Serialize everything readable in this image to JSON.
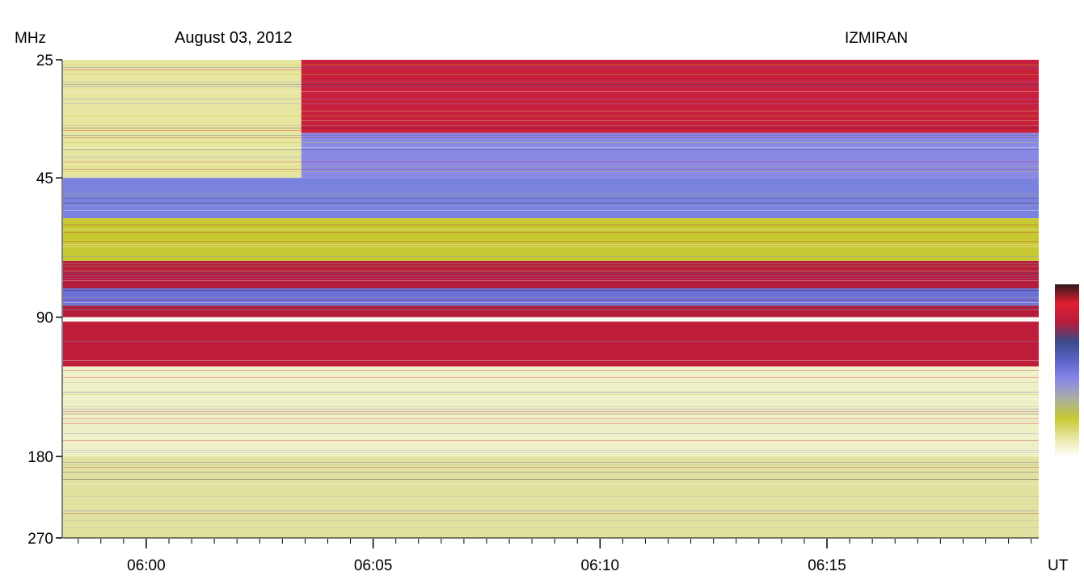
{
  "chart_data": {
    "type": "heatmap",
    "title": "August 03, 2012",
    "observatory": "IZMIRAN",
    "ylabel": "MHz",
    "xlabel": "UT",
    "y_scale": "log",
    "ylim": [
      25,
      270
    ],
    "yticks": [
      {
        "value": 25,
        "label": "25"
      },
      {
        "value": 45,
        "label": "45"
      },
      {
        "value": 90,
        "label": "90"
      },
      {
        "value": 180,
        "label": "180"
      },
      {
        "value": 270,
        "label": "270"
      }
    ],
    "xlim": [
      "05:58:10",
      "06:19:40"
    ],
    "xticks": [
      {
        "value": "06:00",
        "label": "06:00"
      },
      {
        "value": "06:05",
        "label": "06:05"
      },
      {
        "value": "06:10",
        "label": "06:10"
      },
      {
        "value": "06:15",
        "label": "06:15"
      }
    ],
    "minor_tick_minutes": 0.5,
    "colormap": [
      "#ffffff",
      "#e6e6a0",
      "#c8c832",
      "#aab0a0",
      "#8a8ae6",
      "#5a64c8",
      "#3a4a8a",
      "#b41e3c",
      "#e01e32",
      "#301818"
    ],
    "bands": [
      {
        "f_start": 25,
        "f_end": 45,
        "t_start": "05:58:10",
        "t_end": "06:03:25",
        "color": "#e6e6a0"
      },
      {
        "f_start": 25,
        "f_end": 36,
        "t_start": "06:03:25",
        "t_end": "06:19:40",
        "color": "#c8203c"
      },
      {
        "f_start": 36,
        "f_end": 45,
        "t_start": "06:03:25",
        "t_end": "06:19:40",
        "color": "#8a8ae6"
      },
      {
        "f_start": 45,
        "f_end": 55,
        "t_start": "05:58:10",
        "t_end": "06:19:40",
        "color": "#7a82e0"
      },
      {
        "f_start": 55,
        "f_end": 68,
        "t_start": "05:58:10",
        "t_end": "06:19:40",
        "color": "#c8c832"
      },
      {
        "f_start": 68,
        "f_end": 78,
        "t_start": "05:58:10",
        "t_end": "06:19:40",
        "color": "#b41e3c"
      },
      {
        "f_start": 78,
        "f_end": 85,
        "t_start": "05:58:10",
        "t_end": "06:19:40",
        "color": "#6a72d6"
      },
      {
        "f_start": 85,
        "f_end": 90,
        "t_start": "05:58:10",
        "t_end": "06:19:40",
        "color": "#b41e3c"
      },
      {
        "f_start": 92,
        "f_end": 115,
        "t_start": "05:58:10",
        "t_end": "06:19:40",
        "color": "#be1e3a"
      },
      {
        "f_start": 115,
        "f_end": 180,
        "t_start": "05:58:10",
        "t_end": "06:19:40",
        "color": "#f0f0c8"
      },
      {
        "f_start": 180,
        "f_end": 270,
        "t_start": "05:58:10",
        "t_end": "06:19:40",
        "color": "#e2e2a0"
      }
    ]
  }
}
